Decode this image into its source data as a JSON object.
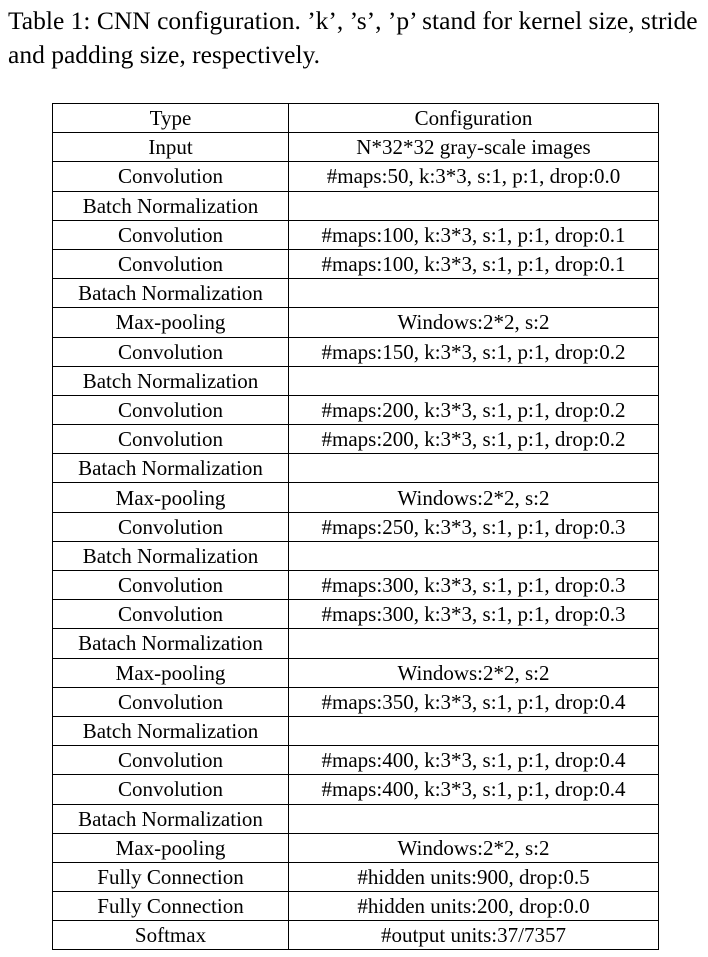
{
  "caption": "Table 1: CNN configuration. ’k’, ’s’, ’p’ stand for kernel size, stride and padding size, respectively.",
  "table": {
    "headers": [
      "Type",
      "Configuration"
    ],
    "rows": [
      [
        "Input",
        "N*32*32 gray-scale images"
      ],
      [
        "Convolution",
        "#maps:50, k:3*3, s:1, p:1, drop:0.0"
      ],
      [
        "Batch Normalization",
        ""
      ],
      [
        "Convolution",
        "#maps:100, k:3*3, s:1, p:1, drop:0.1"
      ],
      [
        "Convolution",
        "#maps:100, k:3*3, s:1, p:1, drop:0.1"
      ],
      [
        "Batach Normalization",
        ""
      ],
      [
        "Max-pooling",
        "Windows:2*2, s:2"
      ],
      [
        "Convolution",
        "#maps:150, k:3*3, s:1, p:1, drop:0.2"
      ],
      [
        "Batch Normalization",
        ""
      ],
      [
        "Convolution",
        "#maps:200, k:3*3, s:1, p:1, drop:0.2"
      ],
      [
        "Convolution",
        "#maps:200, k:3*3, s:1, p:1, drop:0.2"
      ],
      [
        "Batach Normalization",
        ""
      ],
      [
        "Max-pooling",
        "Windows:2*2, s:2"
      ],
      [
        "Convolution",
        "#maps:250, k:3*3, s:1, p:1, drop:0.3"
      ],
      [
        "Batch Normalization",
        ""
      ],
      [
        "Convolution",
        "#maps:300, k:3*3, s:1, p:1, drop:0.3"
      ],
      [
        "Convolution",
        "#maps:300, k:3*3, s:1, p:1, drop:0.3"
      ],
      [
        "Batach Normalization",
        ""
      ],
      [
        "Max-pooling",
        "Windows:2*2, s:2"
      ],
      [
        "Convolution",
        "#maps:350, k:3*3, s:1, p:1, drop:0.4"
      ],
      [
        "Batch Normalization",
        ""
      ],
      [
        "Convolution",
        "#maps:400, k:3*3, s:1, p:1, drop:0.4"
      ],
      [
        "Convolution",
        "#maps:400, k:3*3, s:1, p:1, drop:0.4"
      ],
      [
        "Batach Normalization",
        ""
      ],
      [
        "Max-pooling",
        "Windows:2*2, s:2"
      ],
      [
        "Fully Connection",
        "#hidden units:900, drop:0.5"
      ],
      [
        "Fully Connection",
        "#hidden units:200, drop:0.0"
      ],
      [
        "Softmax",
        "#output units:37/7357"
      ]
    ]
  }
}
